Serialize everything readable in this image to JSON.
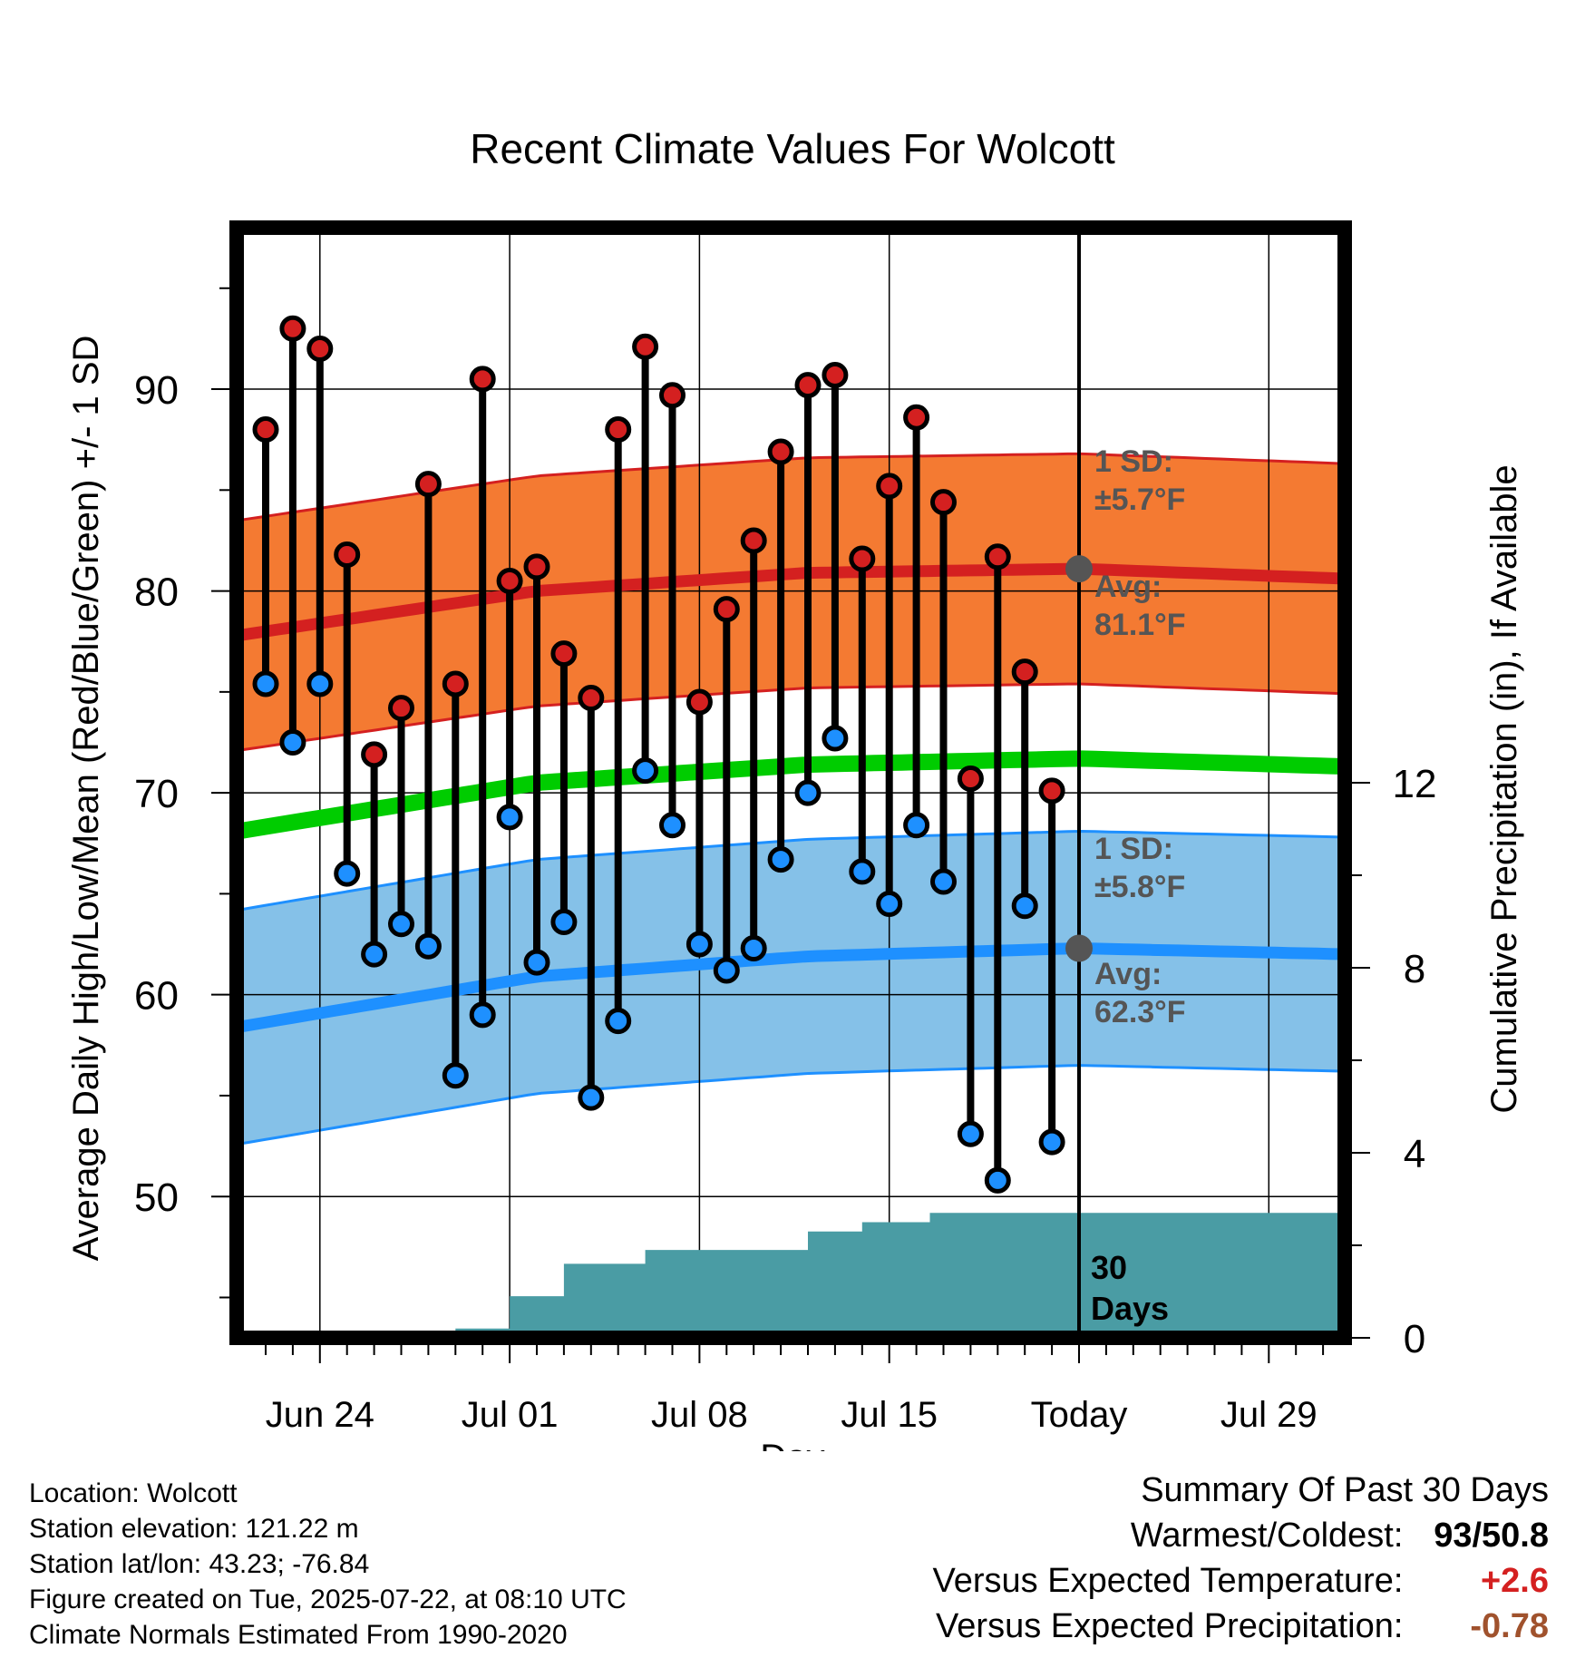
{
  "chart_data": {
    "type": "line",
    "title": "Recent Climate Values For Wolcott",
    "xlabel": "Day",
    "ylabel": "Average Daily High/Low/Mean (Red/Blue/Green) +/- 1 SD",
    "y2label": "Cumulative Precipitation (in), If Available",
    "x_ticks": [
      "Jun 24",
      "Jul 01",
      "Jul 08",
      "Jul 15",
      "Today",
      "Jul 29"
    ],
    "y_ticks": [
      50,
      60,
      70,
      80,
      90
    ],
    "y2_ticks": [
      0,
      4,
      8,
      12
    ],
    "ylim": [
      43,
      98
    ],
    "y2lim": [
      0,
      24
    ],
    "xlim_days": [
      -30.5,
      10
    ],
    "grid": true,
    "annotations": {
      "high_sd": "1 SD:",
      "high_sd_value": "±5.7°F",
      "high_avg": "Avg:",
      "high_avg_value": "81.1°F",
      "low_sd": "1 SD:",
      "low_sd_value": "±5.8°F",
      "low_avg": "Avg:",
      "low_avg_value": "62.3°F",
      "window_num": "30",
      "window_label": "Days"
    },
    "days": [
      -30,
      -29,
      -28,
      -27,
      -26,
      -25,
      -24,
      -23,
      -22,
      -21,
      -20,
      -19,
      -18,
      -17,
      -16,
      -15,
      -14,
      -13,
      -12,
      -11,
      -10,
      -9,
      -8,
      -7,
      -6,
      -5,
      -4,
      -3,
      -2,
      -1
    ],
    "observed_high": [
      88,
      93,
      92,
      81.8,
      71.9,
      74.2,
      85.3,
      75.4,
      90.5,
      80.5,
      81.2,
      76.9,
      74.7,
      88,
      92.1,
      89.7,
      74.5,
      79.1,
      82.5,
      86.9,
      90.2,
      90.7,
      81.6,
      85.2,
      88.6,
      84.4,
      70.7,
      81.7,
      76,
      70.1
    ],
    "observed_low": [
      75.4,
      72.5,
      75.4,
      66,
      62,
      63.5,
      62.4,
      56,
      59,
      68.8,
      61.6,
      63.6,
      54.9,
      58.7,
      71.1,
      68.4,
      62.5,
      61.2,
      62.3,
      66.7,
      70,
      72.7,
      66.1,
      64.5,
      68.4,
      65.6,
      53.1,
      50.8,
      64.4,
      52.7
    ],
    "normal_days": [
      -31,
      -20,
      -10,
      0,
      10
    ],
    "normal_high": [
      77.8,
      80.0,
      80.9,
      81.1,
      80.6
    ],
    "normal_low": [
      58.4,
      60.9,
      61.9,
      62.3,
      62.0
    ],
    "normal_mean": [
      68.1,
      70.5,
      71.4,
      71.7,
      71.3
    ],
    "sd_high": 5.7,
    "sd_low": 5.8,
    "precip_days": [
      -30,
      -26,
      -26,
      -23,
      -23,
      -21,
      -21,
      -19,
      -19,
      -16,
      -16,
      -10,
      -10,
      -8,
      -8,
      -5.5,
      -5.5,
      0,
      10
    ],
    "precip_cum": [
      0,
      0,
      0.1,
      0.1,
      0.2,
      0.2,
      0.9,
      0.9,
      1.6,
      1.6,
      1.9,
      1.9,
      2.3,
      2.3,
      2.5,
      2.5,
      2.7,
      2.7,
      2.7
    ],
    "colors": {
      "high_band": "#f47a32",
      "high_line": "#d42020",
      "low_band": "#85c1e8",
      "low_line": "#1e90ff",
      "mean_line": "#00cc00",
      "precip": "#4a9ca4",
      "high_dot": "#d42020",
      "low_dot": "#1e90ff",
      "avg_dot": "#555555",
      "annotation": "#555555"
    }
  },
  "footer": {
    "location": "Location: Wolcott",
    "elevation": "Station elevation: 121.22 m",
    "latlon": "Station lat/lon: 43.23; -76.84",
    "created": "Figure created on Tue, 2025-07-22, at 08:10 UTC",
    "normals": "Climate Normals Estimated From 1990-2020"
  },
  "summary": {
    "title": "Summary Of Past 30 Days",
    "warmest_label": "Warmest/Coldest:",
    "warmest_value": "93",
    "coldest_value": "50.8",
    "temp_label": "Versus Expected Temperature:",
    "temp_value": "+2.6",
    "precip_label": "Versus Expected Precipitation:",
    "precip_value": "-0.78",
    "temp_color": "#d42020",
    "precip_color": "#a0522d"
  }
}
